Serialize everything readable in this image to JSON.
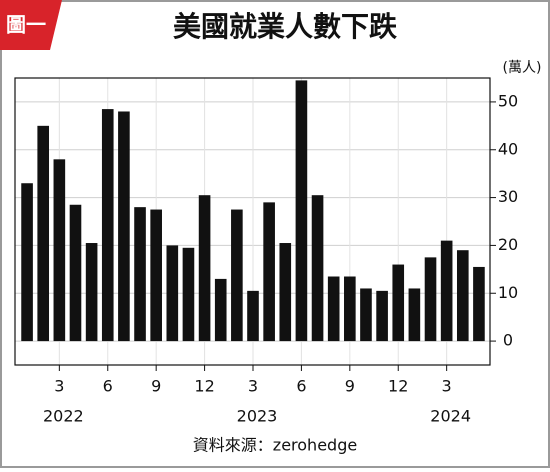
{
  "chart_data": {
    "type": "bar",
    "badge": "圖一",
    "title": "美國就業人數下跌",
    "unit": "(萬人)",
    "source": "資料來源：zerohedge",
    "categories": [
      null,
      null,
      "3",
      null,
      null,
      "6",
      null,
      null,
      "9",
      null,
      null,
      "12",
      null,
      null,
      "3",
      null,
      null,
      "6",
      null,
      null,
      "9",
      null,
      null,
      "12",
      null,
      null,
      "3",
      null,
      null
    ],
    "years": [
      "2022",
      "2023",
      "2024"
    ],
    "values": [
      33,
      45,
      38,
      28.5,
      20.5,
      48.5,
      48,
      28,
      27.5,
      20,
      19.5,
      30.5,
      13,
      27.5,
      10.5,
      29,
      20.5,
      54.5,
      30.5,
      13.5,
      13.5,
      11,
      10.5,
      16,
      11,
      17.5,
      21,
      19,
      15.5
    ],
    "color": "#111111",
    "ylim": [
      -5,
      55
    ],
    "yticks": [
      0,
      10,
      20,
      30,
      40,
      50
    ],
    "grid": true
  }
}
